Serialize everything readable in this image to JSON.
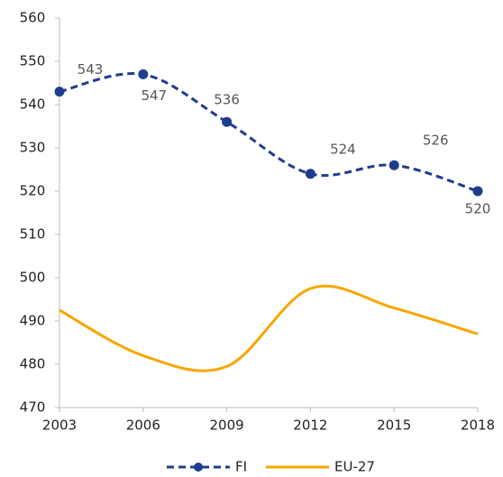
{
  "chart_data": {
    "type": "line",
    "x": [
      2003,
      2006,
      2009,
      2012,
      2015,
      2018
    ],
    "xlim": [
      2003,
      2018
    ],
    "xticks": [
      2003,
      2006,
      2009,
      2012,
      2015,
      2018
    ],
    "ylim": [
      470,
      560
    ],
    "yticks": [
      470,
      480,
      490,
      500,
      510,
      520,
      530,
      540,
      550,
      560
    ],
    "grid": false,
    "legend": "bottom",
    "series": [
      {
        "name": "FI",
        "color": "#1f3d8c",
        "dashed": true,
        "markers": true,
        "data_labels": true,
        "values": [
          543,
          547,
          536,
          524,
          526,
          520
        ]
      },
      {
        "name": "EU-27",
        "color": "#f7a600",
        "dashed": false,
        "markers": false,
        "data_labels": false,
        "values": [
          492.5,
          482,
          479.5,
          497.5,
          493,
          487
        ]
      }
    ]
  }
}
